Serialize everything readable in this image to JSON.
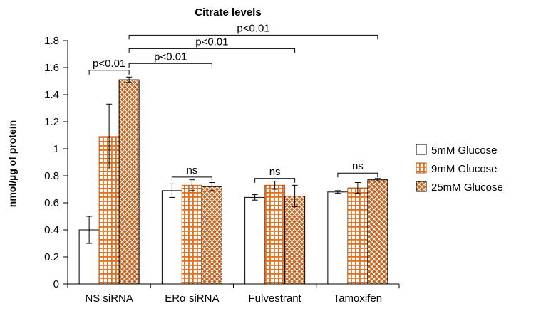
{
  "chart_data": {
    "type": "bar",
    "title": "Citrate levels",
    "xlabel": "",
    "ylabel": "nmol/µg of protein",
    "ylim": [
      0,
      1.8
    ],
    "yticks": [
      "0",
      "0.2",
      "0.4",
      "0.6",
      "0.8",
      "1",
      "1.2",
      "1.4",
      "1.6",
      "1.8"
    ],
    "ytick_values": [
      0,
      0.2,
      0.4,
      0.6,
      0.8,
      1.0,
      1.2,
      1.4,
      1.6,
      1.8
    ],
    "categories": [
      "NS siRNA",
      "ERα siRNA",
      "Fulvestrant",
      "Tamoxifen"
    ],
    "grid": false,
    "legend_position": "right",
    "series": [
      {
        "name": "5mM Glucose",
        "values": [
          0.4,
          0.69,
          0.64,
          0.68
        ],
        "errors": [
          0.1,
          0.05,
          0.02,
          0.01
        ],
        "color": "#ffffff",
        "pattern": "none"
      },
      {
        "name": "9mM Glucose",
        "values": [
          1.09,
          0.73,
          0.73,
          0.71
        ],
        "errors": [
          0.24,
          0.04,
          0.03,
          0.04
        ],
        "color": "#e07020",
        "pattern": "grid"
      },
      {
        "name": "25mM Glucose",
        "values": [
          1.51,
          0.72,
          0.65,
          0.77
        ],
        "errors": [
          0.02,
          0.03,
          0.08,
          0.01
        ],
        "color": "#c8641e",
        "pattern": "diamond"
      }
    ],
    "annotations": [
      {
        "text": "p<0.01",
        "from": [
          "NS siRNA",
          0
        ],
        "to": [
          "NS siRNA",
          2
        ],
        "level": 1.58
      },
      {
        "text": "p<0.01",
        "from": [
          "NS siRNA",
          2
        ],
        "to": [
          "ERα siRNA",
          2
        ],
        "level": 1.63
      },
      {
        "text": "p<0.01",
        "from": [
          "NS siRNA",
          2
        ],
        "to": [
          "Fulvestrant",
          2
        ],
        "level": 1.74
      },
      {
        "text": "p<0.01",
        "from": [
          "NS siRNA",
          2
        ],
        "to": [
          "Tamoxifen",
          2
        ],
        "level": 1.84
      },
      {
        "text": "ns",
        "from": [
          "ERα siRNA",
          0
        ],
        "to": [
          "ERα siRNA",
          2
        ],
        "level": 0.79
      },
      {
        "text": "ns",
        "from": [
          "Fulvestrant",
          0
        ],
        "to": [
          "Fulvestrant",
          2
        ],
        "level": 0.78
      },
      {
        "text": "ns",
        "from": [
          "Tamoxifen",
          0
        ],
        "to": [
          "Tamoxifen",
          2
        ],
        "level": 0.82
      }
    ]
  }
}
